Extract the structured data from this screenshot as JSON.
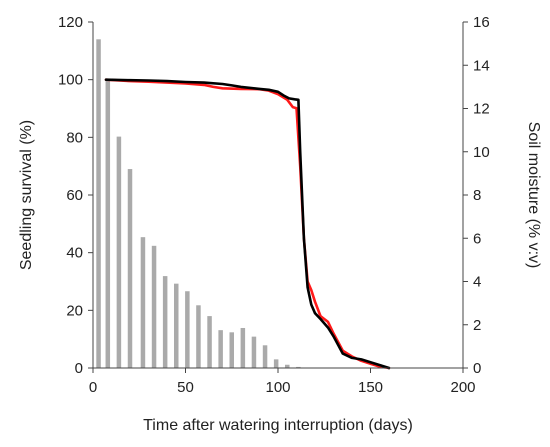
{
  "chart_data": {
    "type": "bar+line",
    "xlabel": "Time after watering interruption (days)",
    "ylabel_left": "Seedling survival  (%)",
    "ylabel_right": "Soil moisture (% v:v)",
    "xlim": [
      0,
      200
    ],
    "ylim_left": [
      0,
      120
    ],
    "ylim_right": [
      0,
      16
    ],
    "x_ticks": [
      0,
      50,
      100,
      150,
      200
    ],
    "y_left_ticks": [
      0,
      20,
      40,
      60,
      80,
      100,
      120
    ],
    "y_right_ticks": [
      0,
      2,
      4,
      6,
      8,
      10,
      12,
      14,
      16
    ],
    "grid": false,
    "legend": "none",
    "bars": {
      "axis": "right",
      "color": "#aaaaaa",
      "x": [
        3,
        8,
        14,
        20,
        27,
        33,
        39,
        45,
        51,
        57,
        63,
        69,
        75,
        81,
        87,
        93,
        99,
        105,
        111,
        117,
        123
      ],
      "values": [
        15.2,
        13.3,
        10.7,
        9.2,
        6.05,
        5.65,
        4.25,
        3.9,
        3.55,
        2.9,
        2.4,
        1.75,
        1.65,
        1.85,
        1.45,
        1.05,
        0.4,
        0.15,
        0.05,
        0.02,
        0.01
      ]
    },
    "series": [
      {
        "color": "#ff1a1a",
        "axis": "left",
        "x": [
          7,
          20,
          30,
          40,
          50,
          60,
          65,
          70,
          80,
          90,
          95,
          100,
          105,
          108,
          110,
          112,
          114,
          116,
          118,
          120,
          123,
          127,
          130,
          135,
          140,
          145,
          150,
          155,
          160
        ],
        "y": [
          100,
          99.5,
          99.3,
          99,
          98.7,
          98.2,
          97.5,
          97,
          96.8,
          96.7,
          96.2,
          95,
          93,
          90.5,
          90.1,
          70,
          45,
          30,
          27,
          23,
          18,
          16,
          12,
          6,
          4,
          2.5,
          1.5,
          0.5,
          0
        ]
      },
      {
        "color": "#000000",
        "axis": "left",
        "x": [
          7,
          20,
          30,
          40,
          50,
          60,
          70,
          75,
          80,
          90,
          95,
          100,
          103,
          106,
          109,
          111,
          112,
          114,
          116,
          118,
          120,
          123,
          127,
          130,
          135,
          140,
          145,
          150,
          155,
          160
        ],
        "y": [
          100,
          99.8,
          99.7,
          99.5,
          99.2,
          99,
          98.5,
          98,
          97.5,
          96.8,
          96.5,
          95.8,
          94.5,
          93.5,
          93.2,
          93,
          75,
          45,
          28,
          22,
          19,
          17,
          14,
          11,
          5,
          3.5,
          3,
          2,
          1,
          0
        ]
      }
    ]
  }
}
